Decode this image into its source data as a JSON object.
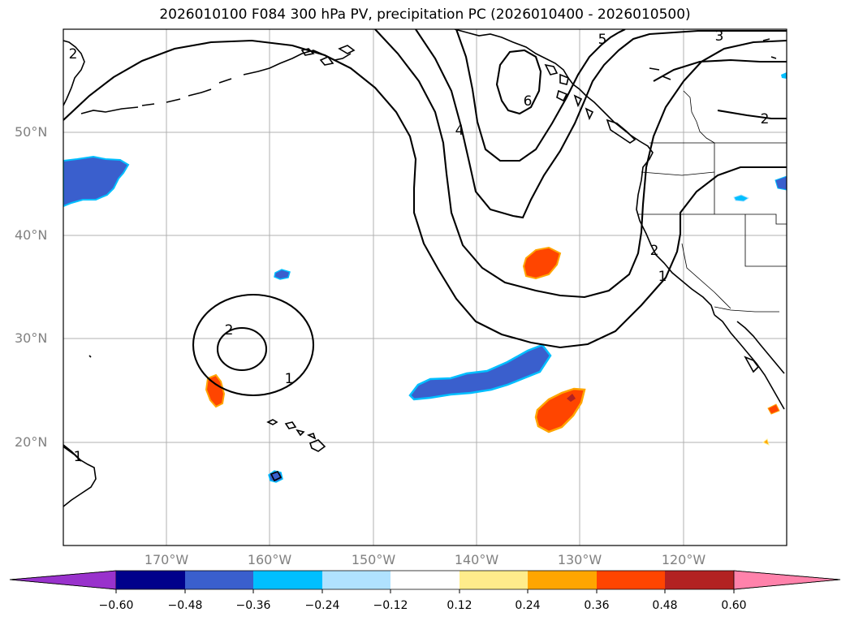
{
  "title": "2026010100 F084 300 hPa PV, precipitation PC (2026010400 - 2026010500)",
  "map": {
    "lon_range": [
      -180,
      -110
    ],
    "lat_range": [
      10,
      60
    ],
    "lat_labels": [
      "50°N",
      "40°N",
      "30°N",
      "20°N"
    ],
    "lon_labels": [
      "170°W",
      "160°W",
      "150°W",
      "140°W",
      "130°W",
      "120°W"
    ],
    "contour_labels": [
      "2",
      "1",
      "2",
      "4",
      "6",
      "5",
      "3",
      "2",
      "1",
      "2",
      "1"
    ]
  },
  "colorbar": {
    "tick_labels": [
      "−0.60",
      "−0.48",
      "−0.36",
      "−0.24",
      "−0.12",
      "0.12",
      "0.24",
      "0.36",
      "0.48",
      "0.60"
    ],
    "colors": [
      "#9932cc",
      "#00008b",
      "#3a5fcd",
      "#00bfff",
      "#b0e2ff",
      "#ffffff",
      "#ffec8b",
      "#ffa500",
      "#ff4500",
      "#b22222",
      "#ff82ab"
    ]
  }
}
